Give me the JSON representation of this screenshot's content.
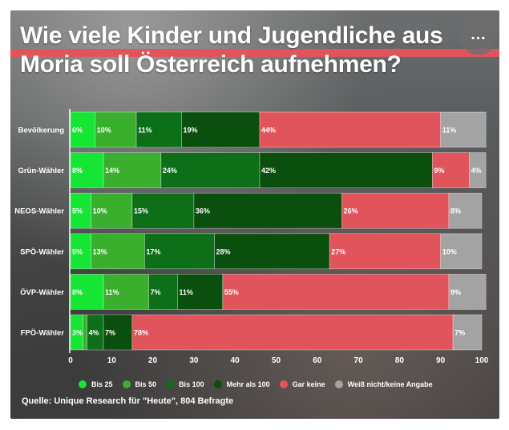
{
  "colors": {
    "bis_25": "#14e633",
    "bis_50": "#3aaf2e",
    "bis_100": "#0d6f18",
    "mehr_als_100": "#0a4f0e",
    "gar_keine": "#e2545c",
    "weiss_nicht": "#a3a3a3"
  },
  "header": {
    "title_line1": "Wie viele Kinder und Jugendliche aus",
    "title_line2": "Moria soll Österreich aufnehmen?",
    "more_icon": "more-horizontal-icon"
  },
  "chart_data": {
    "type": "bar",
    "orientation": "horizontal",
    "stacked": true,
    "title": "Wie viele Kinder und Jugendliche aus Moria soll Österreich aufnehmen?",
    "categories": [
      "Bevölkerung",
      "Grün-Wähler",
      "NEOS-Wähler",
      "SPÖ-Wähler",
      "ÖVP-Wähler",
      "FPÖ-Wähler"
    ],
    "series": [
      {
        "name": "Bis 25",
        "color_key": "bis_25",
        "values": [
          6,
          8,
          5,
          5,
          8,
          3
        ]
      },
      {
        "name": "Bis 50",
        "color_key": "bis_50",
        "values": [
          10,
          14,
          10,
          13,
          11,
          1
        ]
      },
      {
        "name": "Bis 100",
        "color_key": "bis_100",
        "values": [
          11,
          24,
          15,
          17,
          7,
          4
        ]
      },
      {
        "name": "Mehr als 100",
        "color_key": "mehr_als_100",
        "values": [
          19,
          42,
          36,
          28,
          11,
          7
        ]
      },
      {
        "name": "Gar keine",
        "color_key": "gar_keine",
        "values": [
          44,
          9,
          26,
          27,
          55,
          78
        ]
      },
      {
        "name": "Weiß nicht/keine Angabe",
        "color_key": "weiss_nicht",
        "values": [
          11,
          4,
          8,
          10,
          9,
          7
        ]
      }
    ],
    "value_labels": [
      [
        "6%",
        "10%",
        "11%",
        "19%",
        "44%",
        "11%"
      ],
      [
        "8%",
        "14%",
        "24%",
        "42%",
        "9%",
        "4%"
      ],
      [
        "5%",
        "10%",
        "15%",
        "36%",
        "26%",
        "8%"
      ],
      [
        "5%",
        "13%",
        "17%",
        "28%",
        "27%",
        "10%"
      ],
      [
        "8%",
        "11%",
        "7%",
        "11%",
        "55%",
        "9%"
      ],
      [
        "3%",
        "",
        "4%",
        "7%",
        "78%",
        "7%"
      ]
    ],
    "xlim": [
      0,
      100
    ],
    "xticks": [
      0,
      10,
      20,
      30,
      40,
      50,
      60,
      70,
      80,
      90,
      100
    ],
    "xlabel": "",
    "ylabel": "",
    "legend_position": "bottom"
  },
  "legend": {
    "items": [
      {
        "label": "Bis 25",
        "color_key": "bis_25"
      },
      {
        "label": "Bis 50",
        "color_key": "bis_50"
      },
      {
        "label": "Bis 100",
        "color_key": "bis_100"
      },
      {
        "label": "Mehr als 100",
        "color_key": "mehr_als_100"
      },
      {
        "label": "Gar keine",
        "color_key": "gar_keine"
      },
      {
        "label": "Weiß nicht/keine Angabe",
        "color_key": "weiss_nicht"
      }
    ]
  },
  "footer": {
    "source": "Quelle: Unique Research für \"Heute\", 804 Befragte"
  }
}
